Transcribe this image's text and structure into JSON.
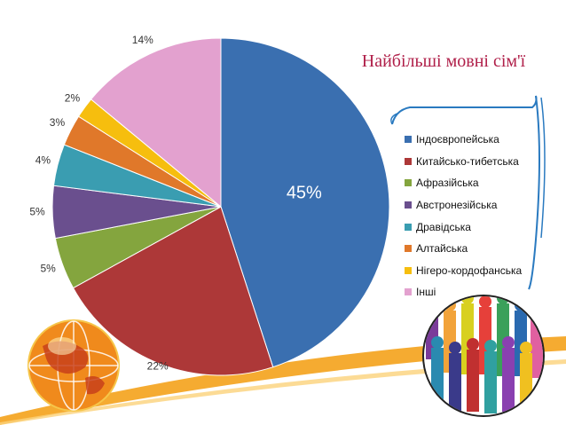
{
  "chart_data": {
    "type": "pie",
    "title": "Найбільші мовні сім'ї",
    "categories": [
      "Індоєвропейська",
      "Китайсько-тибетська",
      "Афразійська",
      "Австронезійська",
      "Дравідська",
      "Алтайська",
      "Нігеро-кордофанська",
      "Інші"
    ],
    "values": [
      45,
      22,
      5,
      5,
      4,
      3,
      2,
      14
    ],
    "value_labels": [
      "45%",
      "22%",
      "5%",
      "5%",
      "4%",
      "3%",
      "2%",
      "14%"
    ],
    "colors": [
      "#3a6fb0",
      "#ad3838",
      "#84a53e",
      "#6a4f8e",
      "#3a9db1",
      "#e0782a",
      "#f6be0e",
      "#e3a1cf"
    ],
    "legend_position": "right"
  },
  "decor": {
    "left_image": "globe-with-figures",
    "right_image": "crowd-of-people-circle",
    "accent_color": "#f4a21b"
  }
}
